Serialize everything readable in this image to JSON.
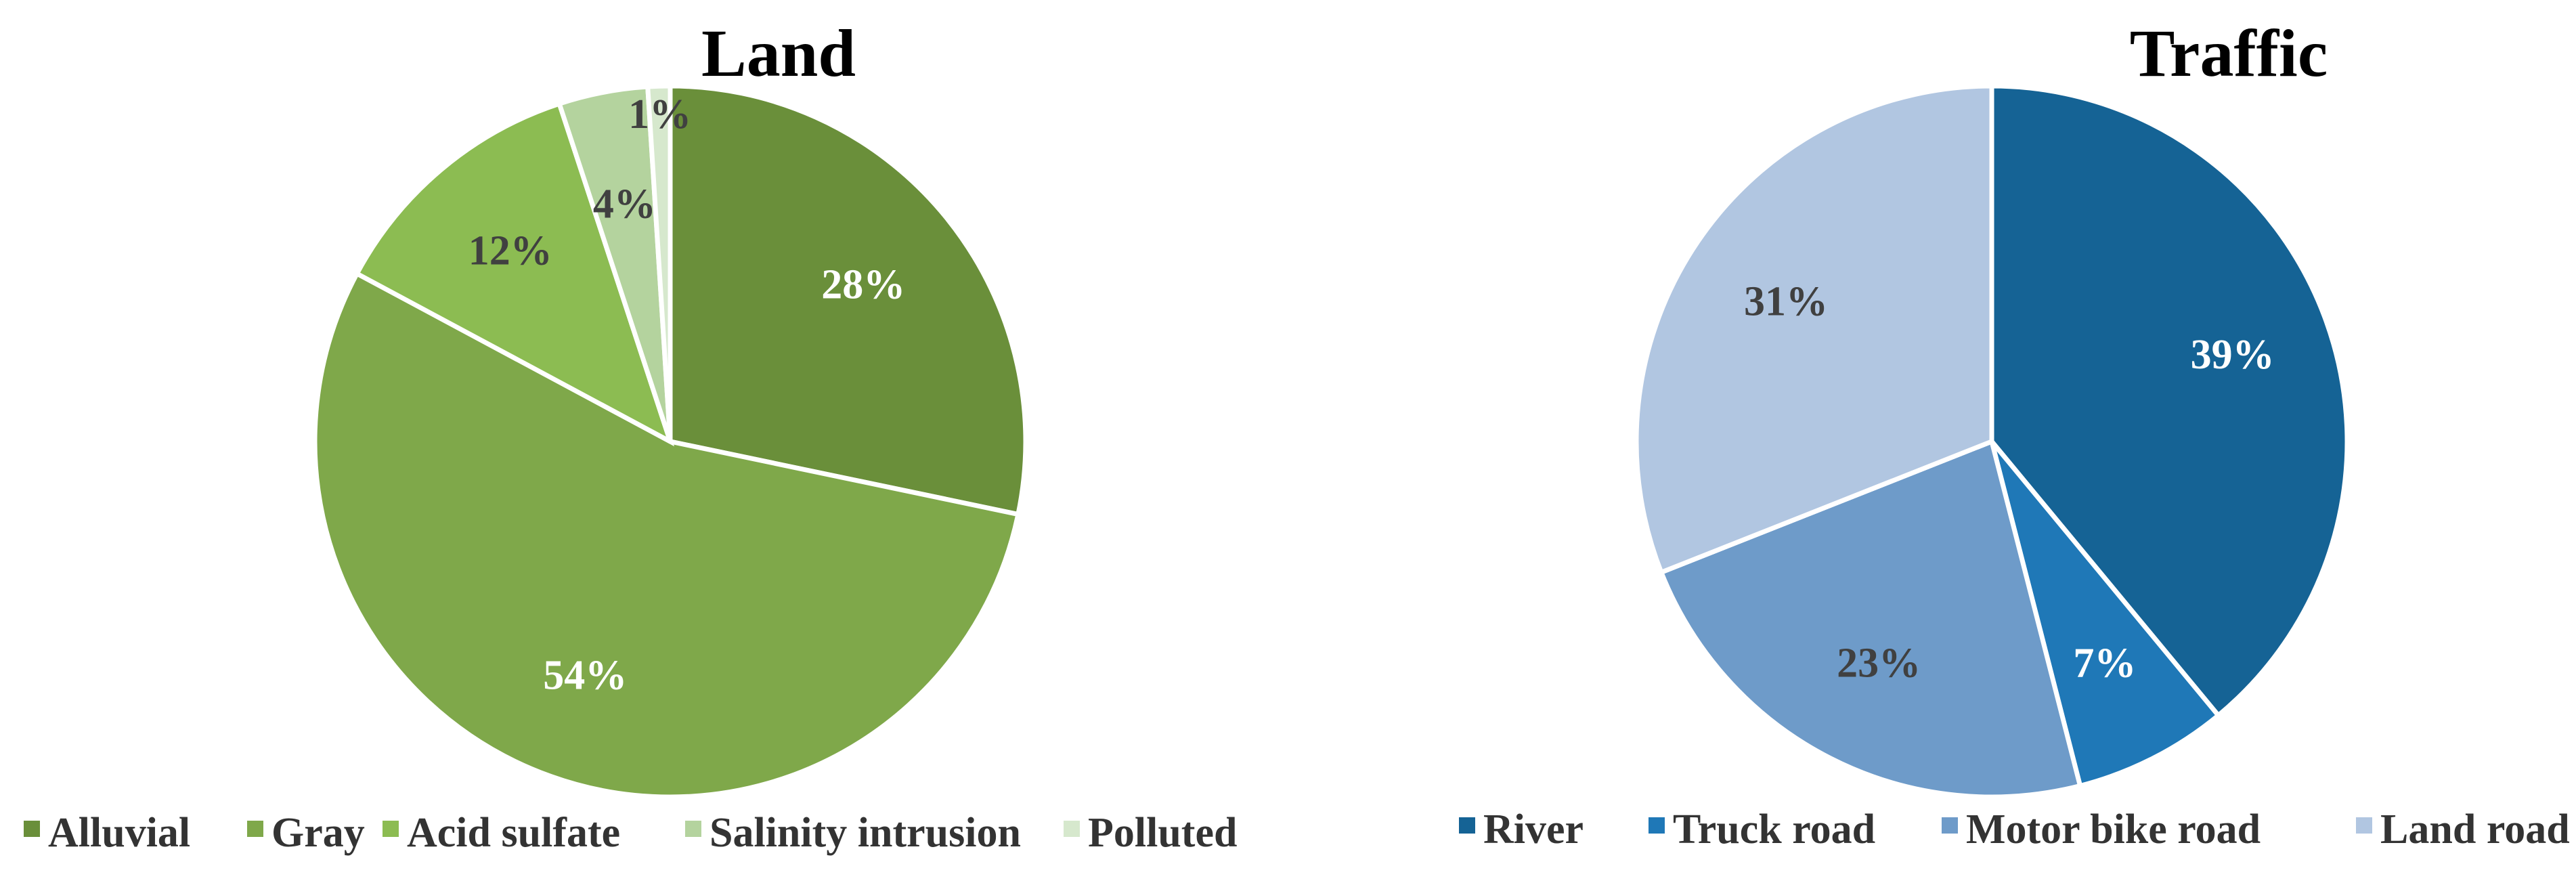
{
  "chart_data": [
    {
      "type": "pie",
      "title": "Land",
      "categories": [
        "Alluvial",
        "Gray",
        "Acid sulfate",
        "Salinity intrusion",
        "Polluted"
      ],
      "values": [
        28,
        54,
        12,
        4,
        1
      ],
      "labels": [
        "28%",
        "54%",
        "12%",
        "4%",
        "1%"
      ],
      "colors": [
        "#6a8f3a",
        "#7fa84a",
        "#8cbc52",
        "#b4d39e",
        "#d6e8cd"
      ],
      "label_colors": [
        "#ffffff",
        "#ffffff",
        "#404040",
        "#404040",
        "#404040"
      ],
      "legend_position": "bottom"
    },
    {
      "type": "pie",
      "title": "Traffic",
      "categories": [
        "River",
        "Truck road",
        "Motor bike road",
        "Land road"
      ],
      "values": [
        39,
        7,
        23,
        31
      ],
      "labels": [
        "39%",
        "7%",
        "23%",
        "31%"
      ],
      "colors": [
        "#156395",
        "#1f78b7",
        "#6e9bc9",
        "#b1c6e1"
      ],
      "label_colors": [
        "#ffffff",
        "#ffffff",
        "#404040",
        "#404040"
      ],
      "legend_position": "bottom"
    }
  ]
}
